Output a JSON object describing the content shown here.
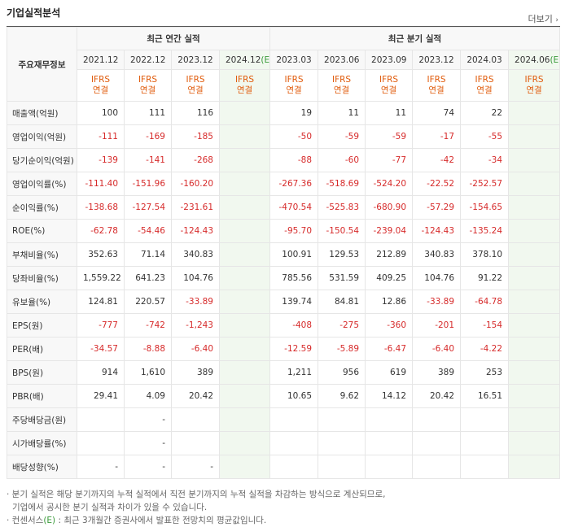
{
  "section_title": "기업실적분석",
  "more_label": "더보기",
  "row_header_label": "주요재무정보",
  "annual_group_label": "최근 연간 실적",
  "quarter_group_label": "최근 분기 실적",
  "annual_periods": [
    "2021.12",
    "2022.12",
    "2023.12",
    "2024.12"
  ],
  "quarter_periods": [
    "2023.03",
    "2023.06",
    "2023.09",
    "2023.12",
    "2024.03",
    "2024.06"
  ],
  "estimate_mark": "(E)",
  "ifrs_top": "IFRS",
  "ifrs_bottom": "연결",
  "rows": [
    {
      "label": "매출액(억원)",
      "annual": [
        "100",
        "111",
        "116",
        ""
      ],
      "quarter": [
        "19",
        "11",
        "11",
        "74",
        "22",
        ""
      ]
    },
    {
      "label": "영업이익(억원)",
      "annual": [
        "-111",
        "-169",
        "-185",
        ""
      ],
      "quarter": [
        "-50",
        "-59",
        "-59",
        "-17",
        "-55",
        ""
      ]
    },
    {
      "label": "당기순이익(억원)",
      "annual": [
        "-139",
        "-141",
        "-268",
        ""
      ],
      "quarter": [
        "-88",
        "-60",
        "-77",
        "-42",
        "-34",
        ""
      ]
    },
    {
      "label": "영업이익률(%)",
      "annual": [
        "-111.40",
        "-151.96",
        "-160.20",
        ""
      ],
      "quarter": [
        "-267.36",
        "-518.69",
        "-524.20",
        "-22.52",
        "-252.57",
        ""
      ]
    },
    {
      "label": "순이익률(%)",
      "annual": [
        "-138.68",
        "-127.54",
        "-231.61",
        ""
      ],
      "quarter": [
        "-470.54",
        "-525.83",
        "-680.90",
        "-57.29",
        "-154.65",
        ""
      ]
    },
    {
      "label": "ROE(%)",
      "annual": [
        "-62.78",
        "-54.46",
        "-124.43",
        ""
      ],
      "quarter": [
        "-95.70",
        "-150.54",
        "-239.04",
        "-124.43",
        "-135.24",
        ""
      ]
    },
    {
      "label": "부채비율(%)",
      "annual": [
        "352.63",
        "71.14",
        "340.83",
        ""
      ],
      "quarter": [
        "100.91",
        "129.53",
        "212.89",
        "340.83",
        "378.10",
        ""
      ]
    },
    {
      "label": "당좌비율(%)",
      "annual": [
        "1,559.22",
        "641.23",
        "104.76",
        ""
      ],
      "quarter": [
        "785.56",
        "531.59",
        "409.25",
        "104.76",
        "91.22",
        ""
      ]
    },
    {
      "label": "유보율(%)",
      "annual": [
        "124.81",
        "220.57",
        "-33.89",
        ""
      ],
      "quarter": [
        "139.74",
        "84.81",
        "12.86",
        "-33.89",
        "-64.78",
        ""
      ]
    },
    {
      "label": "EPS(원)",
      "annual": [
        "-777",
        "-742",
        "-1,243",
        ""
      ],
      "quarter": [
        "-408",
        "-275",
        "-360",
        "-201",
        "-154",
        ""
      ]
    },
    {
      "label": "PER(배)",
      "annual": [
        "-34.57",
        "-8.88",
        "-6.40",
        ""
      ],
      "quarter": [
        "-12.59",
        "-5.89",
        "-6.47",
        "-6.40",
        "-4.22",
        ""
      ]
    },
    {
      "label": "BPS(원)",
      "annual": [
        "914",
        "1,610",
        "389",
        ""
      ],
      "quarter": [
        "1,211",
        "956",
        "619",
        "389",
        "253",
        ""
      ]
    },
    {
      "label": "PBR(배)",
      "annual": [
        "29.41",
        "4.09",
        "20.42",
        ""
      ],
      "quarter": [
        "10.65",
        "9.62",
        "14.12",
        "20.42",
        "16.51",
        ""
      ]
    },
    {
      "label": "주당배당금(원)",
      "annual": [
        "",
        "-",
        "",
        ""
      ],
      "quarter": [
        "",
        "",
        "",
        "",
        "",
        ""
      ]
    },
    {
      "label": "시가배당률(%)",
      "annual": [
        "",
        "-",
        "",
        ""
      ],
      "quarter": [
        "",
        "",
        "",
        "",
        "",
        ""
      ]
    },
    {
      "label": "배당성향(%)",
      "annual": [
        "-",
        "-",
        "-",
        ""
      ],
      "quarter": [
        "",
        "",
        "",
        "",
        "",
        ""
      ]
    }
  ],
  "notes": [
    "· 분기 실적은 해당 분기까지의 누적 실적에서 직전 분기까지의 누적 실적을 차감하는 방식으로 계산되므로,",
    "기업에서 공시한 분기 실적과 차이가 있을 수 있습니다.",
    "· 컨센서스",
    ": 최근 3개월간 증권사에서 발표한 전망치의 평균값입니다."
  ],
  "colors": {
    "negative": "#d62a2a",
    "ifrs": "#e05a0a",
    "estimate_bg": "#f1f8ef",
    "estimate_mark": "#3a9a3a"
  }
}
